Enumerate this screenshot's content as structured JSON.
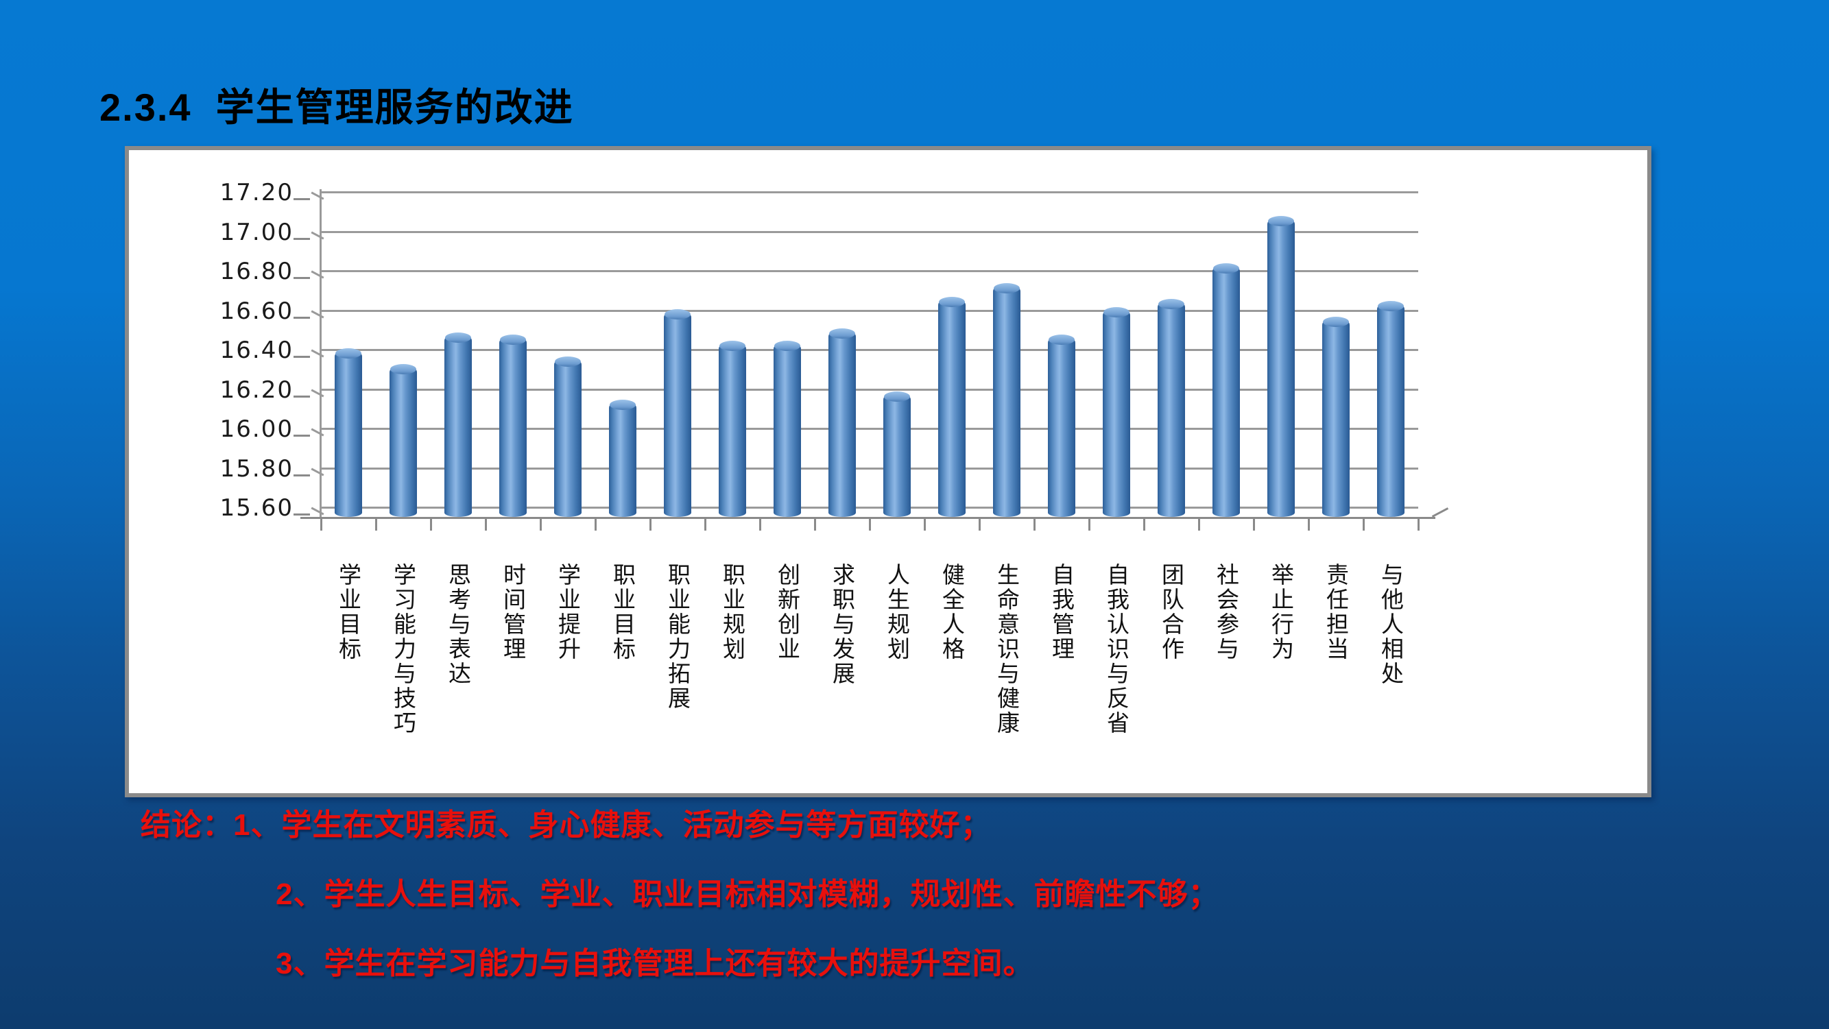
{
  "slide": {
    "title": "2.3.4  学生管理服务的改进",
    "conclusions": [
      "结论：1、学生在文明素质、身心健康、活动参与等方面较好；",
      "2、学生人生目标、学业、职业目标相对模糊，规划性、前瞻性不够；",
      "3、学生在学习能力与自我管理上还有较大的提升空间。"
    ],
    "colors": {
      "background_top": "#0679d2",
      "background_bottom": "#0d3c6e",
      "title_color": "#000000",
      "conclusion_color": "#e8100c",
      "panel_background": "#ffffff",
      "panel_border": "#8a8a8a",
      "gridline_color": "#9a9a9a",
      "bar_color": "#4f81bd"
    }
  },
  "chart_data": {
    "type": "bar",
    "style": "3d-cylinder",
    "title": "",
    "xlabel": "",
    "ylabel": "",
    "grid": true,
    "legend": "none",
    "plot_background": "#ffffff",
    "bar_color": "#4f81bd",
    "ylim": [
      15.6,
      17.2
    ],
    "ytick_step": 0.2,
    "ytick_labels": [
      "17.20",
      "17.00",
      "16.80",
      "16.60",
      "16.40",
      "16.20",
      "16.00",
      "15.80",
      "15.60"
    ],
    "categories": [
      "学业目标",
      "学习能力与技巧",
      "思考与表达",
      "时间管理",
      "学业提升",
      "职业目标",
      "职业能力拓展",
      "职业规划",
      "创新创业",
      "求职与发展",
      "人生规划",
      "健全人格",
      "生命意识与健康",
      "自我管理",
      "自我认识与反省",
      "团队合作",
      "社会参与",
      "举止行为",
      "责任担当",
      "与他人相处"
    ],
    "values": [
      16.4,
      16.32,
      16.48,
      16.47,
      16.36,
      16.14,
      16.6,
      16.44,
      16.44,
      16.5,
      16.18,
      16.66,
      16.73,
      16.47,
      16.61,
      16.65,
      16.83,
      17.07,
      16.56,
      16.64
    ]
  }
}
